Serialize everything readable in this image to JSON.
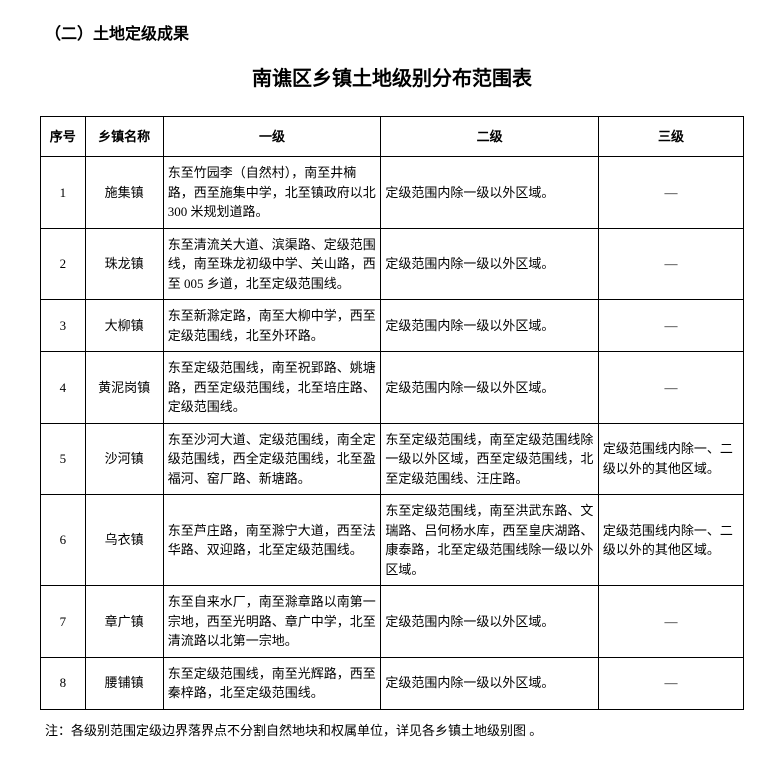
{
  "section_label": "（二）土地定级成果",
  "title": "南谯区乡镇土地级别分布范围表",
  "columns": {
    "seq": "序号",
    "name": "乡镇名称",
    "level1": "一级",
    "level2": "二级",
    "level3": "三级"
  },
  "dash": "—",
  "common": {
    "level2_default": "定级范围内除一级以外区域。",
    "level3_other": "定级范围线内除一、二级以外的其他区域。"
  },
  "rows": [
    {
      "seq": "1",
      "name": "施集镇",
      "level1": "东至竹园李（自然村），南至井楠路，西至施集中学，北至镇政府以北 300 米规划道路。",
      "level2_key": "level2_default",
      "level3_key": "dash"
    },
    {
      "seq": "2",
      "name": "珠龙镇",
      "level1": "东至清流关大道、滨渠路、定级范围线，南至珠龙初级中学、关山路，西至 005 乡道，北至定级范围线。",
      "level2_key": "level2_default",
      "level3_key": "dash"
    },
    {
      "seq": "3",
      "name": "大柳镇",
      "level1": "东至新滁定路，南至大柳中学，西至定级范围线，北至外环路。",
      "level2_key": "level2_default",
      "level3_key": "dash"
    },
    {
      "seq": "4",
      "name": "黄泥岗镇",
      "level1": "东至定级范围线，南至祝郢路、姚塘路，西至定级范围线，北至培庄路、定级范围线。",
      "level2_key": "level2_default",
      "level3_key": "dash"
    },
    {
      "seq": "5",
      "name": "沙河镇",
      "level1": "东至沙河大道、定级范围线，南全定级范围线，西全定级范围线，北至盈福河、窑厂路、新塘路。",
      "level2_text": "东至定级范围线，南至定级范围线除一级以外区域，西至定级范围线，北至定级范围线、汪庄路。",
      "level3_key": "level3_other"
    },
    {
      "seq": "6",
      "name": "乌衣镇",
      "level1": "东至芦庄路，南至滁宁大道，西至法华路、双迎路，北至定级范围线。",
      "level2_text": "东至定级范围线，南至洪武东路、文瑞路、吕何杨水库，西至皇庆湖路、康泰路，北至定级范围线除一级以外区域。",
      "level3_key": "level3_other"
    },
    {
      "seq": "7",
      "name": "章广镇",
      "level1": "东至自来水厂，南至滁章路以南第一宗地，西至光明路、章广中学，北至清流路以北第一宗地。",
      "level2_key": "level2_default",
      "level3_key": "dash"
    },
    {
      "seq": "8",
      "name": "腰铺镇",
      "level1": "东至定级范围线，南至光辉路，西至秦梓路，北至定级范围线。",
      "level2_key": "level2_default",
      "level3_key": "dash"
    }
  ],
  "note": "注：各级别范围定级边界落界点不分割自然地块和权属单位，详见各乡镇土地级别图 。",
  "styles": {
    "background_color": "#ffffff",
    "border_color": "#000000",
    "text_color": "#000000",
    "title_fontsize": 20,
    "section_fontsize": 16,
    "body_fontsize": 13
  }
}
